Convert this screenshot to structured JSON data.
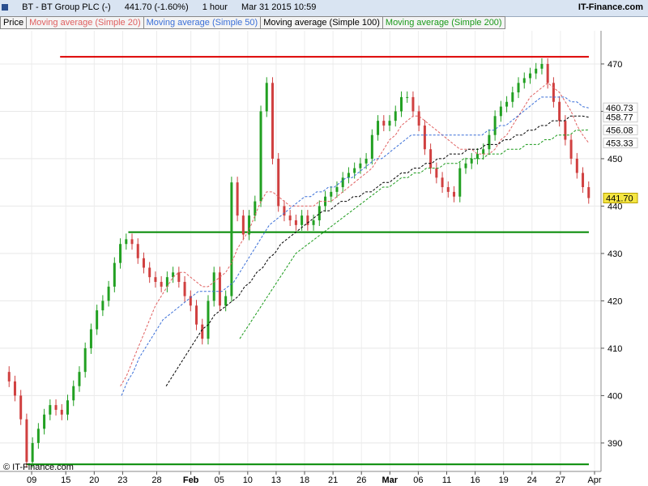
{
  "header": {
    "symbol": "BT - BT Group PLC (-)",
    "last_change": "441.70 (-1.60%)",
    "interval": "1 hour",
    "datetime": "Mar 31 2015 10:59",
    "brand": "IT-Finance.com"
  },
  "legend": [
    {
      "label": "Price",
      "color": "#000000"
    },
    {
      "label": "Moving average (Simple 20)",
      "color": "#e06060"
    },
    {
      "label": "Moving average (Simple 50)",
      "color": "#3a6fd8"
    },
    {
      "label": "Moving average (Simple 100)",
      "color": "#000000"
    },
    {
      "label": "Moving average (Simple 200)",
      "color": "#1a9a1a"
    }
  ],
  "copyright": "© IT-Finance.com",
  "chart_data": {
    "type": "candlestick",
    "y_ticks": [
      390,
      400,
      410,
      420,
      430,
      440,
      450,
      460,
      470
    ],
    "ylim": [
      384,
      477
    ],
    "x_ticks": [
      {
        "label": "09",
        "bar": 5
      },
      {
        "label": "15",
        "bar": 11
      },
      {
        "label": "20",
        "bar": 16
      },
      {
        "label": "23",
        "bar": 21
      },
      {
        "label": "28",
        "bar": 27
      },
      {
        "label": "Feb",
        "bar": 33,
        "major": true
      },
      {
        "label": "05",
        "bar": 38
      },
      {
        "label": "10",
        "bar": 43
      },
      {
        "label": "13",
        "bar": 48
      },
      {
        "label": "18",
        "bar": 53
      },
      {
        "label": "21",
        "bar": 58
      },
      {
        "label": "26",
        "bar": 63
      },
      {
        "label": "Mar",
        "bar": 68,
        "major": true
      },
      {
        "label": "06",
        "bar": 73
      },
      {
        "label": "11",
        "bar": 78
      },
      {
        "label": "16",
        "bar": 83
      },
      {
        "label": "19",
        "bar": 88
      },
      {
        "label": "24",
        "bar": 93
      },
      {
        "label": "27",
        "bar": 98
      },
      {
        "label": "Apr",
        "bar": 104
      }
    ],
    "bar_count": 104,
    "price_series": [
      405,
      403,
      400,
      395,
      386,
      390,
      393,
      396,
      398,
      397,
      396,
      399,
      402,
      405,
      410,
      414,
      418,
      420,
      423,
      428,
      432,
      433,
      432,
      429,
      427,
      425,
      424,
      423,
      425,
      426,
      424,
      421,
      419,
      415,
      412,
      420,
      426,
      419,
      421,
      445,
      438,
      434,
      438,
      441,
      460,
      466,
      450,
      440,
      438,
      437,
      436,
      438,
      436,
      437,
      440,
      442,
      443,
      444,
      446,
      447,
      448,
      449,
      450,
      455,
      458,
      457,
      458,
      460,
      463,
      463,
      460,
      457,
      452,
      448,
      446,
      444,
      443,
      442,
      448,
      449,
      450,
      451,
      452,
      455,
      459,
      461,
      462,
      464,
      466,
      467,
      468,
      469,
      470,
      466,
      462,
      458,
      454,
      450,
      447,
      444,
      441.7
    ],
    "sma20": [
      null,
      null,
      null,
      null,
      null,
      null,
      null,
      null,
      null,
      null,
      null,
      null,
      null,
      null,
      null,
      null,
      null,
      null,
      null,
      null,
      402,
      404,
      407,
      410,
      413,
      416,
      419,
      421,
      423,
      425,
      426,
      426,
      425,
      424,
      423,
      423,
      424,
      425,
      426,
      428,
      431,
      433,
      435,
      438,
      441,
      443,
      443,
      442,
      441,
      440,
      440,
      440,
      440,
      440,
      441,
      441,
      441,
      442,
      443,
      444,
      445,
      446,
      447,
      448,
      450,
      452,
      454,
      455,
      457,
      458,
      459,
      459,
      458,
      457,
      456,
      455,
      454,
      453,
      452,
      452,
      452,
      451,
      451,
      451,
      452,
      454,
      455,
      457,
      459,
      461,
      463,
      464,
      465,
      466,
      465,
      464,
      462,
      460,
      457,
      455,
      453.33
    ],
    "sma50": [
      null,
      null,
      null,
      null,
      null,
      null,
      null,
      null,
      null,
      null,
      null,
      null,
      null,
      null,
      null,
      null,
      null,
      null,
      null,
      null,
      400,
      403,
      405,
      408,
      410,
      412,
      414,
      416,
      417,
      418,
      419,
      420,
      421,
      422,
      422,
      422,
      422,
      422,
      423,
      424,
      426,
      428,
      430,
      432,
      434,
      436,
      437,
      438,
      439,
      440,
      441,
      442,
      442,
      443,
      443,
      444,
      444,
      445,
      446,
      446,
      447,
      448,
      449,
      450,
      450,
      451,
      452,
      453,
      454,
      455,
      455,
      455,
      455,
      455,
      455,
      455,
      455,
      455,
      455,
      455,
      455,
      455,
      456,
      456,
      457,
      457,
      458,
      459,
      460,
      461,
      462,
      463,
      463,
      463,
      463,
      463,
      462,
      462,
      461,
      460.73
    ],
    "sma100": [
      null,
      null,
      null,
      null,
      null,
      null,
      null,
      null,
      null,
      null,
      null,
      null,
      null,
      null,
      null,
      null,
      null,
      null,
      null,
      null,
      null,
      null,
      null,
      null,
      null,
      null,
      null,
      402,
      404,
      406,
      408,
      410,
      412,
      414,
      415,
      417,
      418,
      419,
      420,
      421,
      423,
      424,
      426,
      427,
      429,
      430,
      432,
      433,
      434,
      435,
      436,
      437,
      438,
      439,
      439,
      440,
      441,
      441,
      442,
      442,
      443,
      443,
      444,
      445,
      445,
      446,
      447,
      447,
      448,
      448,
      449,
      449,
      450,
      450,
      451,
      451,
      451,
      452,
      452,
      452,
      453,
      453,
      453,
      454,
      454,
      455,
      455,
      456,
      456,
      457,
      457,
      458,
      458,
      458,
      459,
      459,
      459,
      458.77
    ],
    "sma200": [
      null,
      null,
      null,
      null,
      null,
      null,
      null,
      null,
      null,
      null,
      null,
      null,
      null,
      null,
      null,
      null,
      null,
      null,
      null,
      null,
      null,
      null,
      null,
      null,
      null,
      null,
      null,
      null,
      null,
      null,
      null,
      null,
      null,
      null,
      null,
      null,
      null,
      null,
      412,
      414,
      416,
      418,
      420,
      422,
      424,
      426,
      428,
      430,
      431,
      432,
      433,
      434,
      435,
      436,
      437,
      438,
      439,
      440,
      441,
      442,
      443,
      444,
      444,
      445,
      446,
      446,
      447,
      447,
      448,
      448,
      448,
      449,
      449,
      449,
      450,
      450,
      450,
      450,
      451,
      451,
      451,
      452,
      452,
      452,
      453,
      453,
      453,
      454,
      454,
      455,
      455,
      455,
      456,
      456,
      456.08
    ],
    "hlines": [
      {
        "value": 471.5,
        "color": "#dd0000",
        "from_bar": 10,
        "to_bar": 103
      },
      {
        "value": 434.5,
        "color": "#008800",
        "from_bar": 22,
        "to_bar": 103
      },
      {
        "value": 385.5,
        "color": "#008800",
        "from_bar": 4,
        "to_bar": 103
      }
    ],
    "last_values": [
      {
        "value": "460.73",
        "y": 460.73,
        "color": "#3a6fd8"
      },
      {
        "value": "458.77",
        "y": 458.77,
        "color": "#000000"
      },
      {
        "value": "456.08",
        "y": 456.08,
        "color": "#1a9a1a"
      },
      {
        "value": "453.33",
        "y": 453.33,
        "color": "#e06060"
      },
      {
        "value": "441.70",
        "y": 441.7,
        "color": "#000000",
        "highlight": true
      }
    ]
  }
}
